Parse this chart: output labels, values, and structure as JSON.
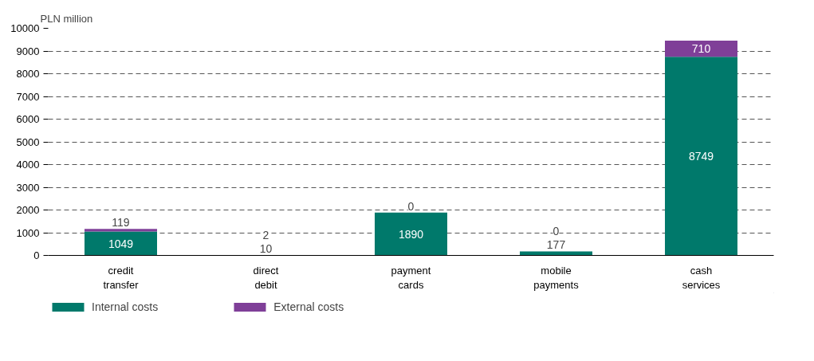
{
  "chart_data": {
    "type": "bar",
    "stacked": true,
    "ylabel": "PLN million",
    "categories": [
      "credit transfer",
      "direct debit",
      "payment cards",
      "mobile payments",
      "cash services"
    ],
    "series": [
      {
        "name": "Internal costs",
        "color": "#00796b",
        "values": [
          1049,
          10,
          1890,
          177,
          8749
        ]
      },
      {
        "name": "External costs",
        "color": "#7f3f98",
        "values": [
          119,
          2,
          0,
          0,
          710
        ]
      }
    ],
    "ylim": [
      0,
      10000
    ],
    "yticks": [
      0,
      1000,
      2000,
      3000,
      4000,
      5000,
      6000,
      7000,
      8000,
      9000,
      10000
    ],
    "grid": "y",
    "legend": "bottom",
    "data_labels": true
  }
}
